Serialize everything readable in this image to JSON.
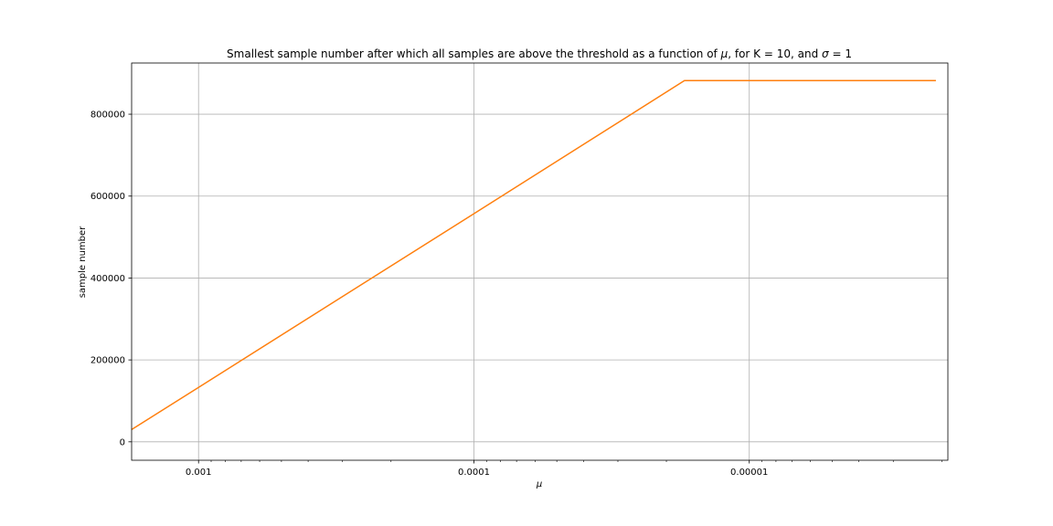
{
  "chart_data": {
    "type": "line",
    "title_parts": {
      "pre": "Smallest sample number after which all samples are above the threshold as a function of ",
      "mu": "μ",
      "mid": ", for K = 10, and ",
      "sigma": "σ",
      "post": " = 1"
    },
    "xlabel": "μ",
    "ylabel": "sample number",
    "x_scale": "log",
    "x_direction": "decreasing",
    "xlim": [
      0.00175,
      1.9e-06
    ],
    "ylim": [
      -45000,
      925000
    ],
    "x_ticks": [
      {
        "value": 0.001,
        "label": "0.001"
      },
      {
        "value": 0.0001,
        "label": "0.0001"
      },
      {
        "value": 1e-05,
        "label": "0.00001"
      }
    ],
    "y_ticks": [
      {
        "value": 0,
        "label": "0"
      },
      {
        "value": 200000,
        "label": "200000"
      },
      {
        "value": 400000,
        "label": "400000"
      },
      {
        "value": 600000,
        "label": "600000"
      },
      {
        "value": 800000,
        "label": "800000"
      }
    ],
    "grid": true,
    "series": [
      {
        "color": "#ff7f0e",
        "x": [
          0.00175,
          0.001,
          0.0001,
          1.72e-05,
          2.1e-06
        ],
        "y": [
          30000,
          133000,
          557000,
          882000,
          882000
        ]
      }
    ]
  }
}
